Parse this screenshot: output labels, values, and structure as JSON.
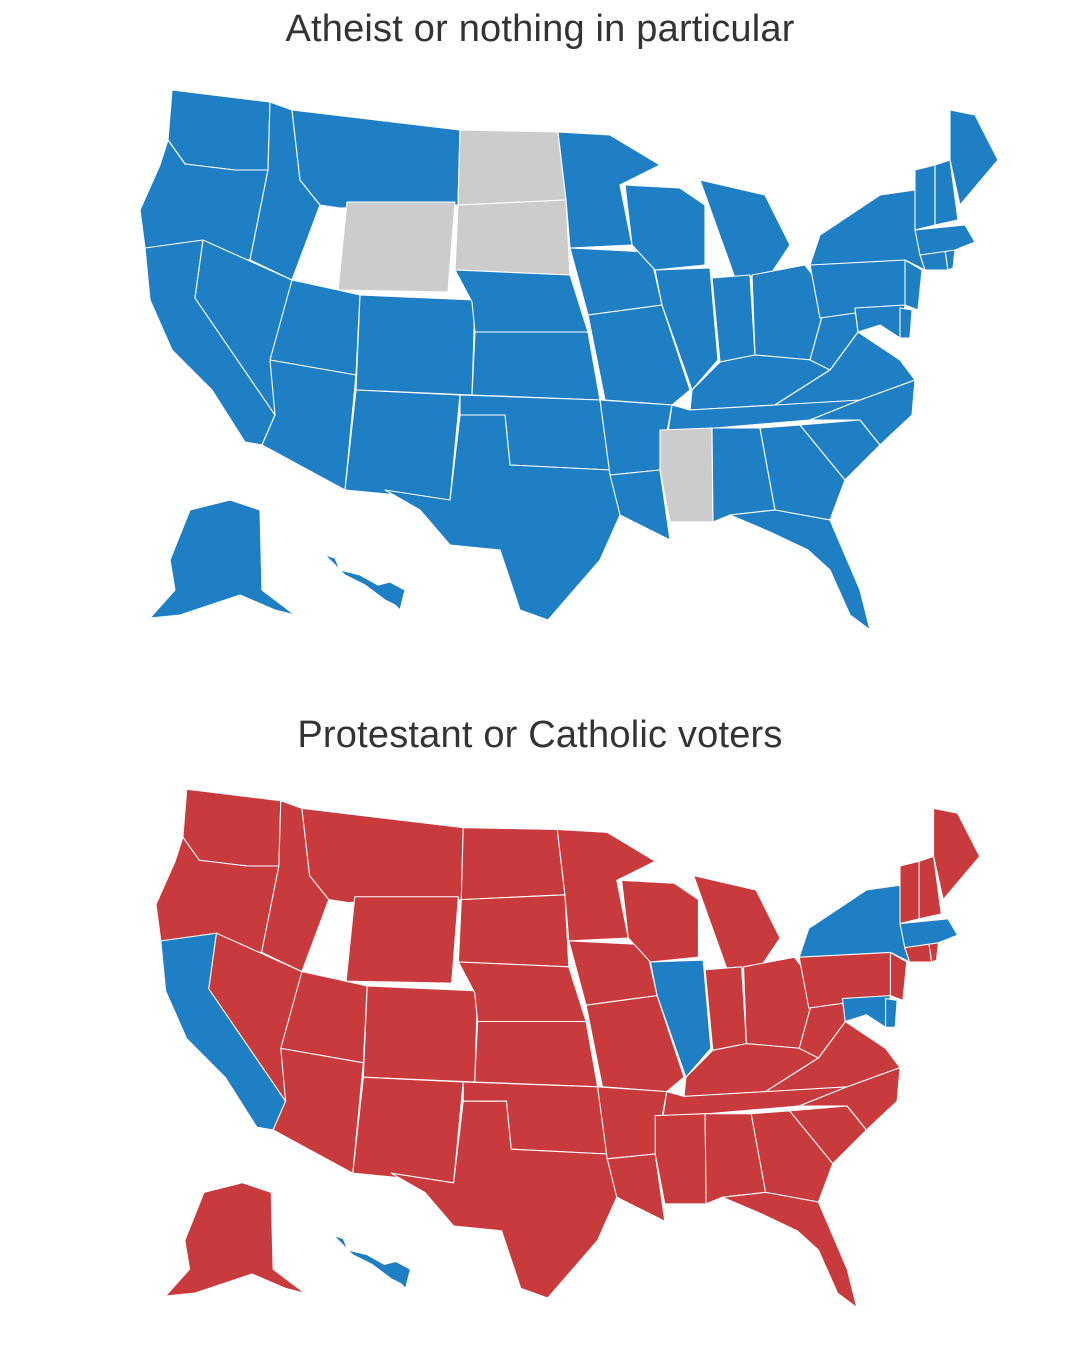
{
  "colors": {
    "blue": "#1f7fc4",
    "red": "#c93a3c",
    "gray": "#cccccc"
  },
  "maps": [
    {
      "title": "Atheist or nothing in particular",
      "default_color": "blue",
      "overrides": {
        "ND": "gray",
        "SD": "gray",
        "WY": "gray",
        "MS": "gray"
      }
    },
    {
      "title": "Protestant or Catholic voters",
      "default_color": "red",
      "overrides": {
        "CA": "blue",
        "IL": "blue",
        "NY": "blue",
        "MA": "blue",
        "MD": "blue",
        "DE": "blue",
        "HI": "blue"
      }
    }
  ]
}
